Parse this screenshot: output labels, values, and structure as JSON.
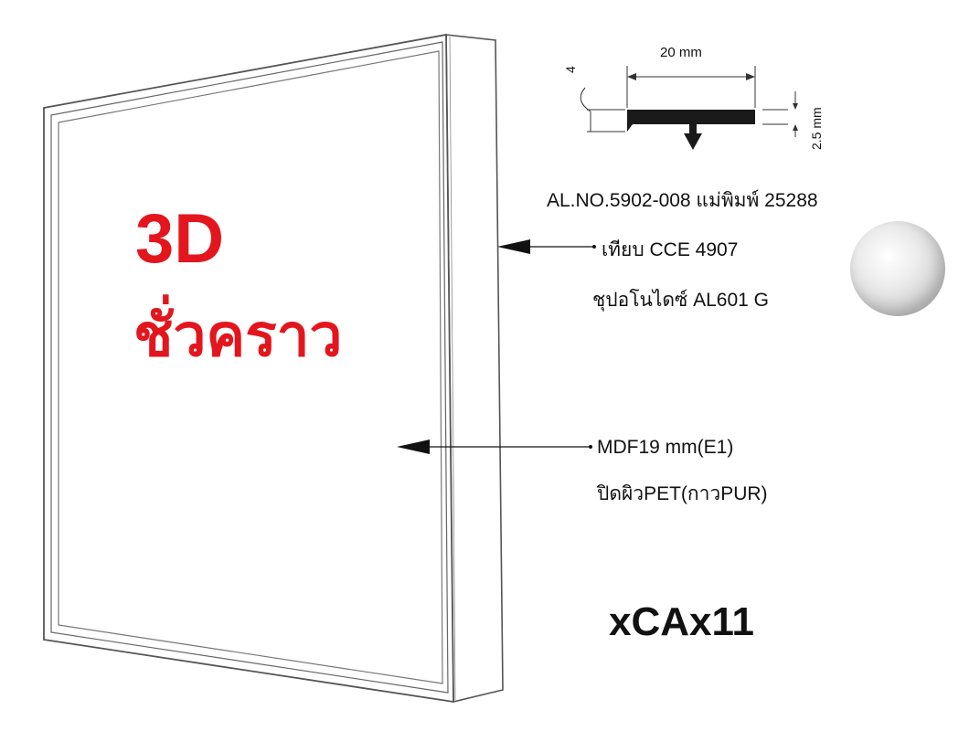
{
  "headline": {
    "line1": "3D",
    "line2": "ชั่วคราว",
    "color": "#e4161d"
  },
  "profile": {
    "width_label": "20 mm",
    "lip_label": "4",
    "height_label": "2.5 mm",
    "model": "AL.NO.5902-008 แม่พิมพ์ 25288"
  },
  "rail_callout": {
    "line1": "เทียบ CCE 4907",
    "line2": "ชุปอโนไดซ์ AL601 G"
  },
  "panel_callout": {
    "line1": "MDF19 mm(E1)",
    "line2": "ปิดผิวPET(กาวPUR)"
  },
  "product_code": "xCAx11",
  "colors": {
    "outline": "#555555",
    "profile_fill": "#1a1a1a",
    "swatch": "#d8d8d8"
  },
  "icons": {
    "finish_swatch": "silver-anodized-swatch-icon"
  }
}
